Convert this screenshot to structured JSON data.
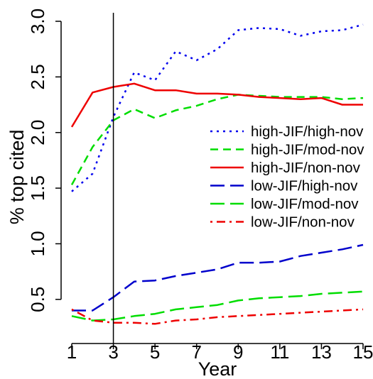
{
  "chart_data": {
    "type": "line",
    "title": "",
    "xlabel": "Year",
    "ylabel": "% top cited",
    "xlim": [
      1,
      15
    ],
    "ylim": [
      0.25,
      3.0
    ],
    "x_ticks": [
      1,
      3,
      5,
      7,
      9,
      11,
      13,
      15
    ],
    "y_ticks": [
      0.5,
      1.0,
      1.5,
      2.0,
      2.5,
      3.0
    ],
    "x_tick_labels": [
      "1",
      "3",
      "5",
      "7",
      "9",
      "11",
      "13",
      "15"
    ],
    "y_tick_labels": [
      "0.5",
      "1.0",
      "1.5",
      "2.0",
      "2.5",
      "3.0"
    ],
    "vertical_reference_line_x": 3,
    "grid": false,
    "legend_position": "right",
    "x": [
      1,
      2,
      3,
      4,
      5,
      6,
      7,
      8,
      9,
      10,
      11,
      12,
      13,
      14,
      15
    ],
    "series": [
      {
        "name": "high-JIF/high-nov",
        "color": "#0000ee",
        "dash": "dotted",
        "values": [
          1.47,
          1.63,
          2.14,
          2.54,
          2.47,
          2.73,
          2.65,
          2.75,
          2.92,
          2.94,
          2.93,
          2.87,
          2.91,
          2.92,
          2.97
        ]
      },
      {
        "name": "high-JIF/mod-nov",
        "color": "#00dd00",
        "dash": "dashed",
        "values": [
          1.53,
          1.87,
          2.11,
          2.21,
          2.13,
          2.2,
          2.24,
          2.3,
          2.34,
          2.33,
          2.32,
          2.32,
          2.32,
          2.3,
          2.31
        ]
      },
      {
        "name": "high-JIF/non-nov",
        "color": "#ee0000",
        "dash": "solid",
        "values": [
          2.05,
          2.36,
          2.41,
          2.44,
          2.38,
          2.38,
          2.35,
          2.35,
          2.34,
          2.32,
          2.31,
          2.3,
          2.31,
          2.25,
          2.25
        ]
      },
      {
        "name": "low-JIF/high-nov",
        "color": "#0000cc",
        "dash": "longdash",
        "values": [
          0.4,
          0.4,
          0.52,
          0.66,
          0.67,
          0.71,
          0.74,
          0.77,
          0.83,
          0.83,
          0.84,
          0.89,
          0.92,
          0.95,
          0.99
        ]
      },
      {
        "name": "low-JIF/mod-nov",
        "color": "#00dd00",
        "dash": "longdash",
        "values": [
          0.35,
          0.31,
          0.32,
          0.35,
          0.37,
          0.41,
          0.43,
          0.45,
          0.49,
          0.51,
          0.52,
          0.53,
          0.55,
          0.56,
          0.57
        ]
      },
      {
        "name": "low-JIF/non-nov",
        "color": "#ee0000",
        "dash": "dotdash",
        "values": [
          0.41,
          0.31,
          0.29,
          0.29,
          0.28,
          0.31,
          0.32,
          0.34,
          0.35,
          0.36,
          0.37,
          0.38,
          0.39,
          0.4,
          0.41
        ]
      }
    ]
  }
}
